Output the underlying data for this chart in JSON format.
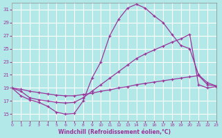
{
  "xlabel": "Windchill (Refroidissement éolien,°C)",
  "bg_color": "#b3e8e8",
  "grid_color": "#ffffff",
  "line_color": "#993399",
  "xlim": [
    0,
    23
  ],
  "ylim": [
    14,
    32
  ],
  "xticks": [
    0,
    1,
    2,
    3,
    4,
    5,
    6,
    7,
    8,
    9,
    10,
    11,
    12,
    13,
    14,
    15,
    16,
    17,
    18,
    19,
    20,
    21,
    22,
    23
  ],
  "yticks": [
    15,
    17,
    19,
    21,
    23,
    25,
    27,
    29,
    31
  ],
  "line1_x": [
    0,
    1,
    2,
    3,
    4,
    5,
    6,
    7,
    8,
    9,
    10,
    11,
    12,
    13,
    14,
    15,
    16,
    17,
    18,
    19,
    20,
    21,
    22,
    23
  ],
  "line1_y": [
    19.0,
    17.8,
    17.2,
    16.8,
    16.2,
    15.3,
    15.0,
    15.1,
    17.0,
    20.5,
    23.0,
    27.0,
    29.5,
    31.2,
    31.8,
    31.2,
    30.0,
    29.0,
    27.2,
    25.5,
    25.0,
    21.0,
    19.8,
    19.3
  ],
  "line2_x": [
    0,
    1,
    2,
    3,
    4,
    5,
    6,
    7,
    8,
    9,
    10,
    11,
    12,
    13,
    14,
    15,
    16,
    17,
    18,
    19,
    20,
    21,
    22,
    23
  ],
  "line2_y": [
    19.0,
    18.5,
    17.5,
    17.2,
    17.0,
    16.8,
    16.7,
    16.8,
    17.5,
    18.5,
    19.5,
    20.5,
    21.5,
    22.5,
    23.5,
    24.2,
    24.8,
    25.4,
    26.0,
    26.5,
    27.2,
    19.5,
    19.0,
    19.2
  ],
  "line3_x": [
    0,
    1,
    2,
    3,
    4,
    5,
    6,
    7,
    8,
    9,
    10,
    11,
    12,
    13,
    14,
    15,
    16,
    17,
    18,
    19,
    20,
    21,
    22,
    23
  ],
  "line3_y": [
    19.0,
    18.8,
    18.5,
    18.3,
    18.1,
    17.9,
    17.8,
    17.8,
    18.0,
    18.2,
    18.5,
    18.7,
    19.0,
    19.2,
    19.5,
    19.7,
    19.9,
    20.1,
    20.3,
    20.5,
    20.7,
    20.9,
    19.5,
    19.3
  ]
}
